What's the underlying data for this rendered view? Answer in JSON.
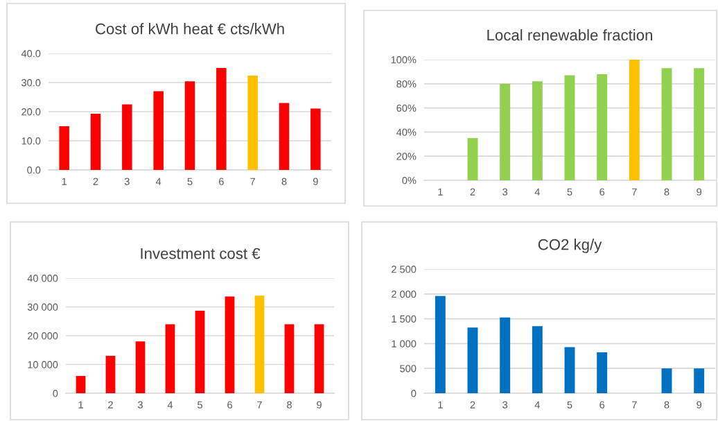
{
  "chart_data": [
    {
      "type": "bar",
      "title": "Cost of kWh heat € cts/kWh",
      "categories": [
        "1",
        "2",
        "3",
        "4",
        "5",
        "6",
        "7",
        "8",
        "9"
      ],
      "values": [
        15.0,
        19.3,
        22.5,
        27.0,
        30.4,
        35.0,
        32.4,
        23.0,
        21.1
      ],
      "colors": [
        "#ff0000",
        "#ff0000",
        "#ff0000",
        "#ff0000",
        "#ff0000",
        "#ff0000",
        "#ffc000",
        "#ff0000",
        "#ff0000"
      ],
      "ylim": [
        0,
        40
      ],
      "yticks": [
        {
          "value": 0,
          "label": "0.0"
        },
        {
          "value": 10,
          "label": "10.0"
        },
        {
          "value": 20,
          "label": "20.0"
        },
        {
          "value": 30,
          "label": "30.0"
        },
        {
          "value": 40,
          "label": "40.0"
        }
      ],
      "grid": "y"
    },
    {
      "type": "bar",
      "title": "Local renewable fraction",
      "categories": [
        "1",
        "2",
        "3",
        "4",
        "5",
        "6",
        "7",
        "8",
        "9"
      ],
      "values": [
        0,
        35,
        80,
        82,
        87,
        88,
        100,
        93,
        93
      ],
      "colors": [
        "#92d050",
        "#92d050",
        "#92d050",
        "#92d050",
        "#92d050",
        "#92d050",
        "#ffc000",
        "#92d050",
        "#92d050"
      ],
      "ylim": [
        0,
        100
      ],
      "yticks": [
        {
          "value": 0,
          "label": "0%"
        },
        {
          "value": 20,
          "label": "20%"
        },
        {
          "value": 40,
          "label": "40%"
        },
        {
          "value": 60,
          "label": "60%"
        },
        {
          "value": 80,
          "label": "80%"
        },
        {
          "value": 100,
          "label": "100%"
        }
      ],
      "grid": "y"
    },
    {
      "type": "bar",
      "title": "Investment cost €",
      "categories": [
        "1",
        "2",
        "3",
        "4",
        "5",
        "6",
        "7",
        "8",
        "9"
      ],
      "values": [
        6000,
        13000,
        18000,
        24000,
        28700,
        33600,
        33900,
        24000,
        24000
      ],
      "colors": [
        "#ff0000",
        "#ff0000",
        "#ff0000",
        "#ff0000",
        "#ff0000",
        "#ff0000",
        "#ffc000",
        "#ff0000",
        "#ff0000"
      ],
      "ylim": [
        0,
        40000
      ],
      "yticks": [
        0,
        {
          "value": 10000,
          "label": "10 000"
        },
        {
          "value": 20000,
          "label": "20 000"
        },
        {
          "value": 30000,
          "label": "30 000"
        },
        {
          "value": 40000,
          "label": "40 000"
        }
      ],
      "grid": "y"
    },
    {
      "type": "bar",
      "title": "CO2 kg/y",
      "categories": [
        "1",
        "2",
        "3",
        "4",
        "5",
        "6",
        "7",
        "8",
        "9"
      ],
      "values": [
        1960,
        1325,
        1525,
        1350,
        930,
        825,
        0,
        500,
        500
      ],
      "colors": [
        "#0070c0",
        "#0070c0",
        "#0070c0",
        "#0070c0",
        "#0070c0",
        "#0070c0",
        "#0070c0",
        "#0070c0",
        "#0070c0"
      ],
      "ylim": [
        0,
        2500
      ],
      "yticks": [
        0,
        500,
        {
          "value": 1000,
          "label": "1 000"
        },
        {
          "value": 1500,
          "label": "1 500"
        },
        {
          "value": 2000,
          "label": "2 000"
        },
        {
          "value": 2500,
          "label": "2 500"
        }
      ],
      "grid": "y"
    }
  ]
}
